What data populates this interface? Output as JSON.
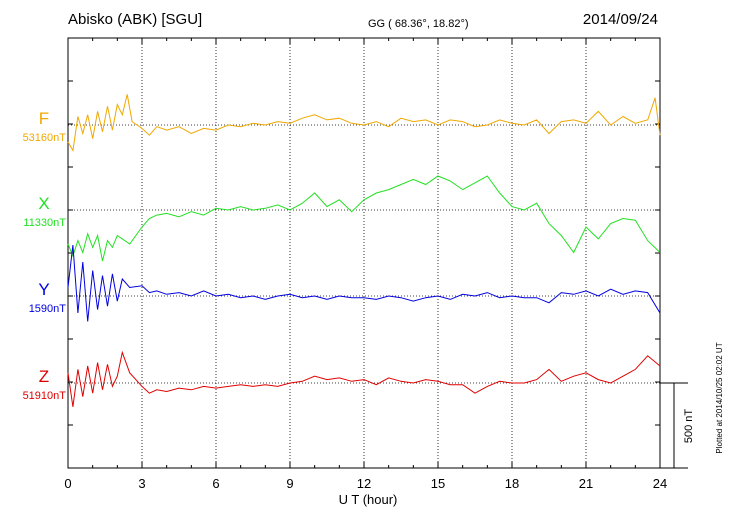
{
  "header": {
    "station": "Abisko (ABK)  [SGU]",
    "coords": "GG ( 68.36°,  18.82°)",
    "date": "2014/09/24"
  },
  "footer_note": "Plotted at 2014/10/25 02:02 UT",
  "chart_data": {
    "type": "line",
    "xlabel": "U T (hour)",
    "xlim": [
      0,
      24
    ],
    "xticks": [
      "0",
      "3",
      "6",
      "9",
      "12",
      "15",
      "18",
      "21",
      "24"
    ],
    "scale_bar": {
      "label": "500 nT",
      "value": 500
    },
    "colors": {
      "F": "#f0a800",
      "X": "#22e022",
      "Y": "#0000e0",
      "Z": "#e00000"
    },
    "series": [
      {
        "name": "F",
        "baseline": "53160nT",
        "color": "#f0a800",
        "x": [
          0,
          0.2,
          0.4,
          0.6,
          0.8,
          1.0,
          1.2,
          1.4,
          1.6,
          1.8,
          2.0,
          2.2,
          2.4,
          2.6,
          3.0,
          3.3,
          3.6,
          4.0,
          4.5,
          5.0,
          5.5,
          6.0,
          6.5,
          7.0,
          7.5,
          8.0,
          8.5,
          9.0,
          9.5,
          10.0,
          10.5,
          11.0,
          11.5,
          12.0,
          12.5,
          13.0,
          13.5,
          14.0,
          14.5,
          15.0,
          15.5,
          16.0,
          16.5,
          17.0,
          17.5,
          18.0,
          18.5,
          19.0,
          19.5,
          20.0,
          20.5,
          21.0,
          21.5,
          22.0,
          22.5,
          23.0,
          23.5,
          23.8,
          24.0
        ],
        "values": [
          -100,
          -150,
          50,
          -50,
          60,
          -80,
          80,
          -40,
          110,
          -30,
          120,
          60,
          180,
          20,
          -20,
          -60,
          -10,
          -30,
          -10,
          -50,
          -20,
          -30,
          0,
          -10,
          10,
          0,
          20,
          10,
          40,
          60,
          30,
          40,
          10,
          0,
          20,
          -10,
          40,
          20,
          30,
          0,
          30,
          20,
          -10,
          0,
          30,
          10,
          0,
          30,
          -50,
          20,
          30,
          10,
          80,
          0,
          50,
          10,
          30,
          160,
          -60
        ]
      },
      {
        "name": "X",
        "baseline": "11330nT",
        "color": "#22e022",
        "x": [
          0,
          0.2,
          0.4,
          0.6,
          0.8,
          1.0,
          1.2,
          1.4,
          1.6,
          1.8,
          2.0,
          2.2,
          2.5,
          3.0,
          3.3,
          3.6,
          4.0,
          4.5,
          5.0,
          5.5,
          6.0,
          6.5,
          7.0,
          7.5,
          8.0,
          8.5,
          9.0,
          9.5,
          10.0,
          10.5,
          11.0,
          11.5,
          12.0,
          12.5,
          13.0,
          13.5,
          14.0,
          14.5,
          15.0,
          15.5,
          16.0,
          16.5,
          17.0,
          17.5,
          18.0,
          18.5,
          19.0,
          19.5,
          20.0,
          20.5,
          21.0,
          21.5,
          22.0,
          22.5,
          23.0,
          23.5,
          24.0
        ],
        "values": [
          -200,
          -270,
          -180,
          -250,
          -140,
          -220,
          -150,
          -300,
          -180,
          -220,
          -150,
          -170,
          -200,
          -100,
          -50,
          -30,
          -20,
          -40,
          -10,
          -30,
          10,
          0,
          20,
          0,
          10,
          30,
          0,
          40,
          100,
          20,
          60,
          -10,
          60,
          100,
          120,
          150,
          180,
          150,
          200,
          170,
          120,
          160,
          200,
          100,
          20,
          0,
          40,
          -80,
          -150,
          -250,
          -100,
          -170,
          -80,
          -50,
          -60,
          -180,
          -250
        ]
      },
      {
        "name": "Y",
        "baseline": "1590nT",
        "color": "#0000e0",
        "x": [
          0,
          0.2,
          0.4,
          0.6,
          0.8,
          1.0,
          1.2,
          1.4,
          1.6,
          1.8,
          2.0,
          2.2,
          2.5,
          3.0,
          3.3,
          3.6,
          4.0,
          4.5,
          5.0,
          5.5,
          6.0,
          6.5,
          7.0,
          7.5,
          8.0,
          8.5,
          9.0,
          9.5,
          10.0,
          10.5,
          11.0,
          11.5,
          12.0,
          12.5,
          13.0,
          13.5,
          14.0,
          14.5,
          15.0,
          15.5,
          16.0,
          16.5,
          17.0,
          17.5,
          18.0,
          18.5,
          19.0,
          19.5,
          20.0,
          20.5,
          21.0,
          21.5,
          22.0,
          22.5,
          23.0,
          23.5,
          24.0
        ],
        "values": [
          50,
          300,
          -100,
          200,
          -150,
          150,
          -80,
          120,
          -60,
          130,
          -30,
          100,
          50,
          60,
          20,
          30,
          10,
          20,
          0,
          30,
          0,
          10,
          -10,
          0,
          -20,
          0,
          10,
          -10,
          0,
          -20,
          0,
          -10,
          -10,
          -20,
          0,
          -10,
          -30,
          -10,
          0,
          -20,
          10,
          0,
          20,
          -10,
          0,
          -10,
          -10,
          -40,
          20,
          10,
          30,
          0,
          40,
          10,
          30,
          20,
          -100
        ]
      },
      {
        "name": "Z",
        "baseline": "51910nT",
        "color": "#e00000",
        "x": [
          0,
          0.2,
          0.4,
          0.6,
          0.8,
          1.0,
          1.2,
          1.4,
          1.6,
          1.8,
          2.0,
          2.2,
          2.5,
          3.0,
          3.3,
          3.6,
          4.0,
          4.5,
          5.0,
          5.5,
          6.0,
          6.5,
          7.0,
          7.5,
          8.0,
          8.5,
          9.0,
          9.5,
          10.0,
          10.5,
          11.0,
          11.5,
          12.0,
          12.5,
          13.0,
          13.5,
          14.0,
          14.5,
          15.0,
          15.5,
          16.0,
          16.5,
          17.0,
          17.5,
          18.0,
          18.5,
          19.0,
          19.5,
          20.0,
          20.5,
          21.0,
          21.5,
          22.0,
          22.5,
          23.0,
          23.5,
          24.0
        ],
        "values": [
          60,
          -140,
          80,
          -80,
          100,
          -60,
          120,
          -40,
          110,
          -20,
          40,
          180,
          60,
          -20,
          -60,
          -40,
          -50,
          -30,
          -40,
          -20,
          -30,
          -20,
          -10,
          -20,
          -10,
          -20,
          0,
          10,
          40,
          20,
          30,
          10,
          20,
          -10,
          30,
          10,
          0,
          20,
          10,
          -10,
          -10,
          -60,
          -20,
          10,
          0,
          0,
          20,
          80,
          10,
          40,
          60,
          20,
          0,
          40,
          80,
          160,
          100
        ]
      }
    ]
  }
}
